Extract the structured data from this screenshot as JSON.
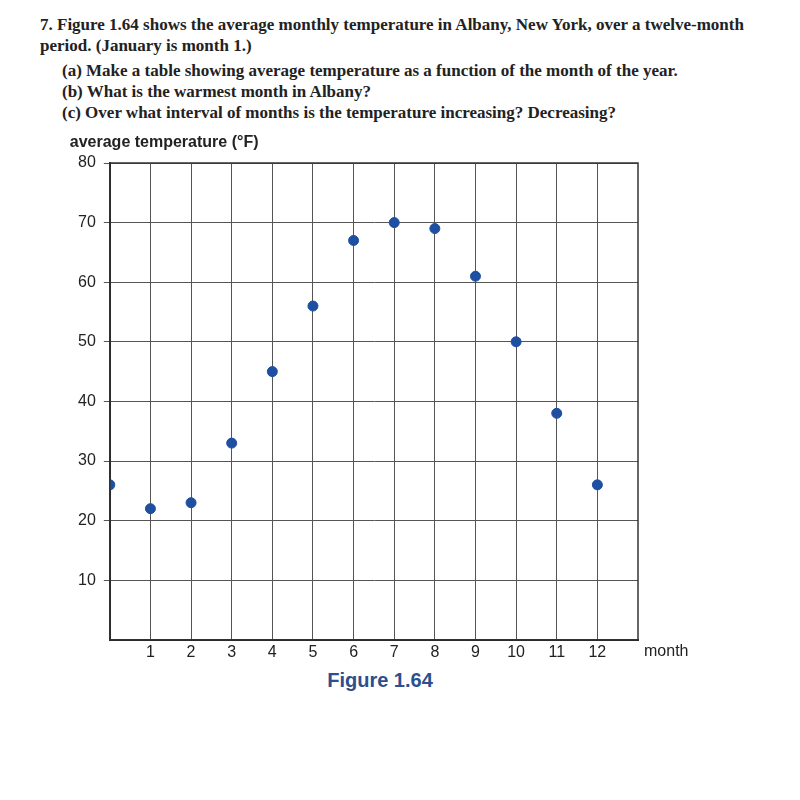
{
  "problem": {
    "number": "7.",
    "text": "Figure 1.64 shows the average monthly temperature in Albany, New York, over a twelve-month period. (January is month 1.)",
    "parts": [
      {
        "label": "(a)",
        "text": "Make a table showing average temperature as a function of the month of the year."
      },
      {
        "label": "(b)",
        "text": "What is the warmest month in Albany?"
      },
      {
        "label": "(c)",
        "text": "Over what interval of months is the temperature increasing? Decreasing?"
      }
    ]
  },
  "chart_data": {
    "type": "scatter",
    "title": "Figure 1.64",
    "x_label": "month",
    "y_label": "average temperature (°F)",
    "x": [
      0,
      1,
      2,
      3,
      4,
      5,
      6,
      7,
      8,
      9,
      10,
      11,
      12
    ],
    "values": [
      26,
      22,
      23,
      33,
      45,
      56,
      67,
      70,
      69,
      61,
      50,
      38,
      26
    ],
    "color": "#1f4fa0",
    "marker": "circle",
    "xlim": [
      0,
      13
    ],
    "xticks": [
      1,
      2,
      3,
      4,
      5,
      6,
      7,
      8,
      9,
      10,
      11,
      12
    ],
    "ylim": [
      0,
      80
    ],
    "yticks": [
      10,
      20,
      30,
      40,
      50,
      60,
      70,
      80
    ],
    "grid": true
  }
}
